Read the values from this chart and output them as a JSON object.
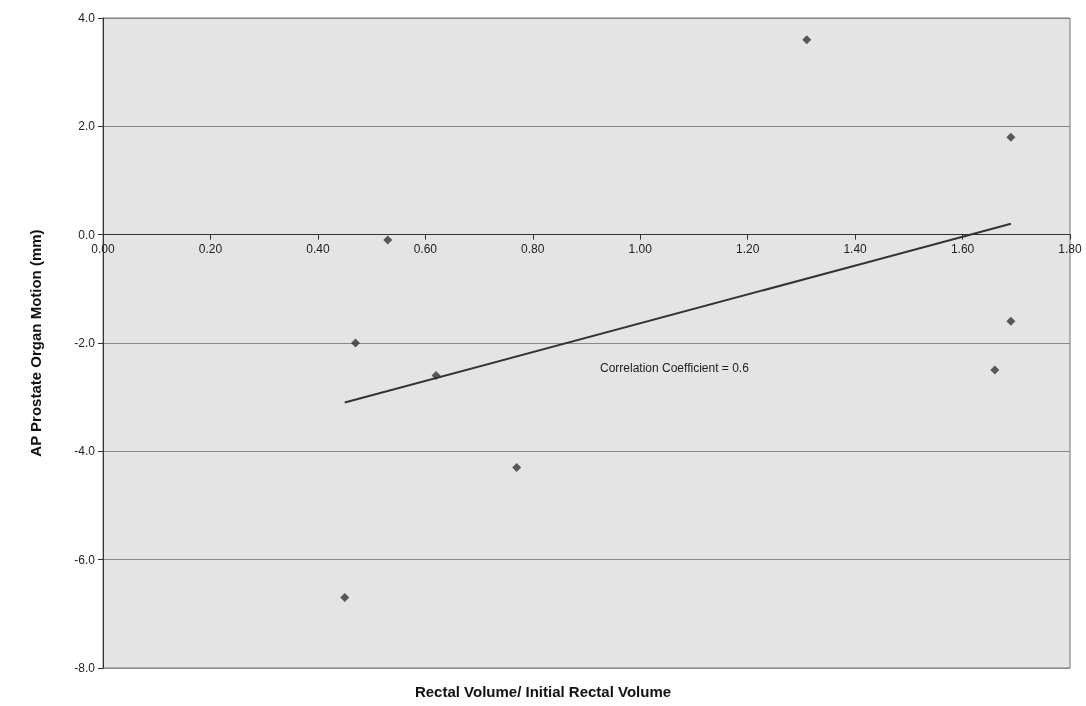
{
  "chart_data": {
    "type": "scatter",
    "xlabel": "Rectal Volume/ Initial Rectal Volume",
    "ylabel": "AP Prostate Organ Motion (mm)",
    "annotations": [
      "Correlation Coefficient = 0.6"
    ],
    "series": [
      {
        "marker": "diamond",
        "color": "#333333",
        "x": [
          1.31,
          1.69,
          0.53,
          0.47,
          0.62,
          0.77,
          0.45,
          1.66,
          1.69
        ],
        "values": [
          3.6,
          1.8,
          -0.1,
          -2.0,
          -2.6,
          -4.3,
          -6.7,
          -2.5,
          -1.6
        ]
      },
      {
        "type": "line",
        "marker": "none",
        "color": "#333333",
        "x": [
          0.45,
          1.69
        ],
        "values": [
          -3.1,
          0.2
        ]
      }
    ],
    "grid": "y",
    "xlim": [
      0,
      1.8
    ],
    "xticks": [
      {
        "value": 0,
        "label": "0.00"
      },
      {
        "value": 0.2,
        "label": "0.20"
      },
      {
        "value": 0.4,
        "label": "0.40"
      },
      {
        "value": 0.6,
        "label": "0.60"
      },
      {
        "value": 0.8,
        "label": "0.80"
      },
      {
        "value": 1.0,
        "label": "1.00"
      },
      {
        "value": 1.2,
        "label": "1.20"
      },
      {
        "value": 1.4,
        "label": "1.40"
      },
      {
        "value": 1.6,
        "label": "1.60"
      },
      {
        "value": 1.8,
        "label": "1.80"
      }
    ],
    "ylim": [
      -8,
      4
    ],
    "yticks": [
      {
        "value": -8,
        "label": "-8.0"
      },
      {
        "value": -6,
        "label": "-6.0"
      },
      {
        "value": -4,
        "label": "-4.0"
      },
      {
        "value": -2,
        "label": "-2.0"
      },
      {
        "value": 0,
        "label": "0.0"
      },
      {
        "value": 2,
        "label": "2.0"
      },
      {
        "value": 4,
        "label": "4.0"
      }
    ]
  }
}
